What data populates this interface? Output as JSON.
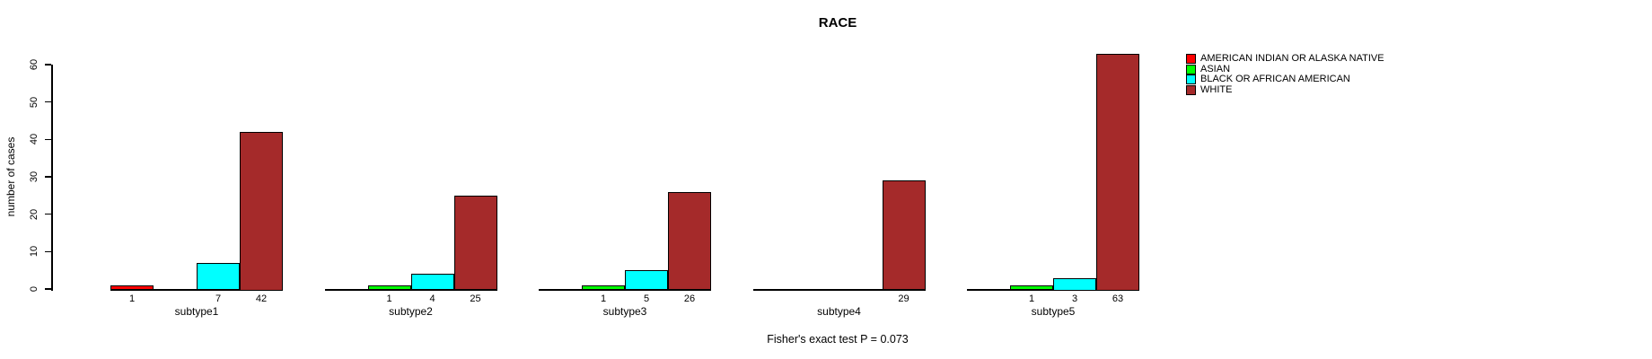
{
  "chart_data": {
    "type": "bar",
    "title": "RACE",
    "xlabel": "",
    "ylabel": "number of cases",
    "ylim": [
      0,
      60
    ],
    "yticks": [
      0,
      10,
      20,
      30,
      40,
      50,
      60
    ],
    "grid": false,
    "legend_position": "right",
    "bar_border_color": "#000000",
    "axis_color": "#000000",
    "categories": [
      "subtype1",
      "subtype2",
      "subtype3",
      "subtype4",
      "subtype5"
    ],
    "series": [
      {
        "name": "AMERICAN INDIAN OR ALASKA NATIVE",
        "color": "#FF0000",
        "values": [
          1,
          0,
          0,
          0,
          0
        ]
      },
      {
        "name": "ASIAN",
        "color": "#00FF00",
        "values": [
          0,
          1,
          1,
          0,
          1
        ]
      },
      {
        "name": "BLACK OR AFRICAN AMERICAN",
        "color": "#00FFFF",
        "values": [
          7,
          4,
          5,
          0,
          3
        ]
      },
      {
        "name": "WHITE",
        "color": "#A52A2A",
        "values": [
          42,
          25,
          26,
          29,
          63
        ]
      }
    ],
    "value_labels_shown_only_if_positive": true,
    "annotation": "Fisher's exact test P = 0.073"
  }
}
